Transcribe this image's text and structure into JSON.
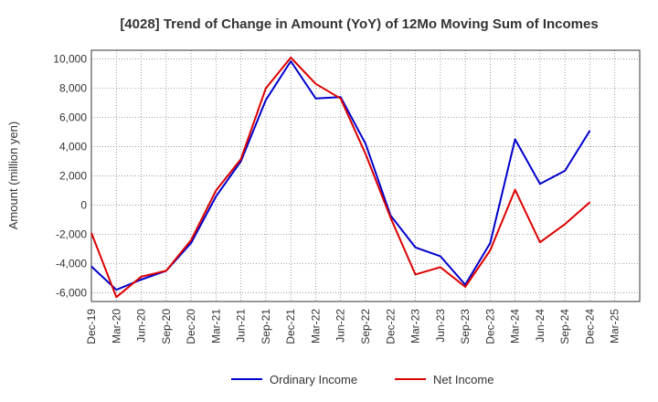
{
  "chart_data": {
    "type": "line",
    "title": "[4028]  Trend of Change in Amount (YoY) of 12Mo Moving Sum of Incomes",
    "xlabel": "",
    "ylabel": "Amount (million yen)",
    "ylim": [
      -6600,
      10600
    ],
    "yticks": [
      -6000,
      -4000,
      -2000,
      0,
      2000,
      4000,
      6000,
      8000,
      10000
    ],
    "ytick_labels": [
      "-6,000",
      "-4,000",
      "-2,000",
      "0",
      "2,000",
      "4,000",
      "6,000",
      "8,000",
      "10,000"
    ],
    "categories": [
      "Dec-19",
      "Mar-20",
      "Jun-20",
      "Sep-20",
      "Dec-20",
      "Mar-21",
      "Jun-21",
      "Sep-21",
      "Dec-21",
      "Mar-22",
      "Jun-22",
      "Sep-22",
      "Dec-22",
      "Mar-23",
      "Jun-23",
      "Sep-23",
      "Dec-23",
      "Mar-24",
      "Jun-24",
      "Sep-24",
      "Dec-24",
      "Mar-25"
    ],
    "grid": true,
    "legend_position": "bottom",
    "series": [
      {
        "name": "Ordinary Income",
        "color": "#0000cc",
        "values": [
          -4200,
          -5800,
          -5100,
          -4500,
          -2600,
          600,
          3000,
          7200,
          9850,
          7300,
          7400,
          4200,
          -700,
          -2900,
          -3500,
          -5450,
          -2600,
          4500,
          1450,
          2350,
          5100,
          null
        ]
      },
      {
        "name": "Net Income",
        "color": "#dd0000",
        "values": [
          -1900,
          -6300,
          -4900,
          -4500,
          -2400,
          1000,
          3150,
          8000,
          10100,
          8300,
          7300,
          3500,
          -850,
          -4750,
          -4250,
          -5600,
          -3100,
          1050,
          -2550,
          -1300,
          200,
          null
        ]
      }
    ]
  }
}
